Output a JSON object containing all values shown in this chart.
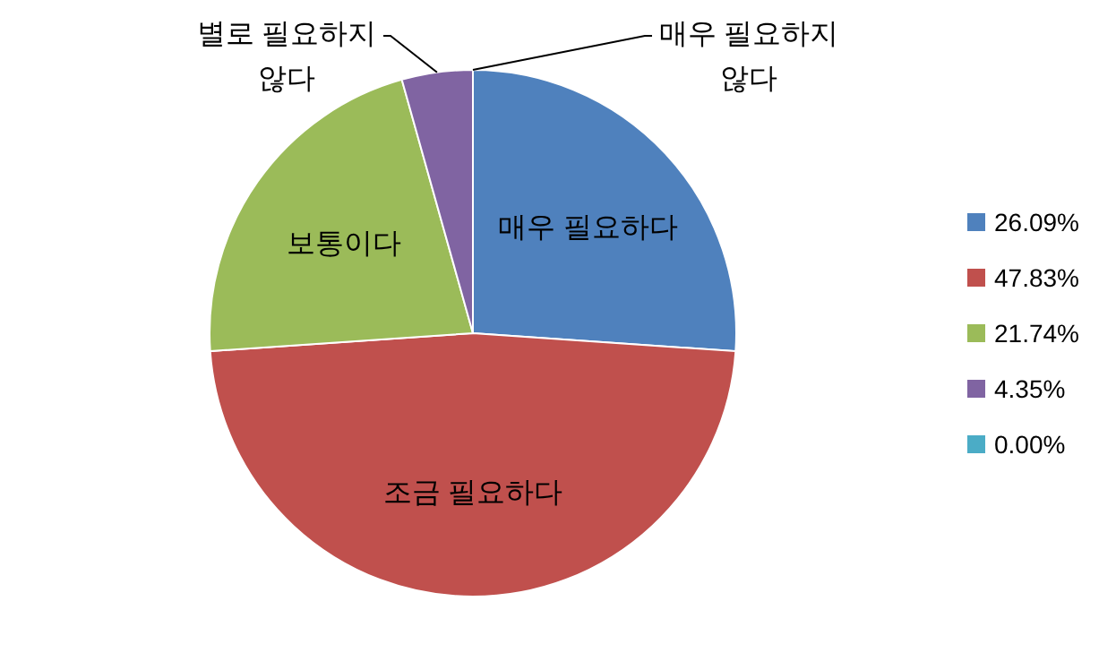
{
  "chart_data": {
    "type": "pie",
    "categories": [
      "26.09%",
      "47.83%",
      "21.74%",
      "4.35%",
      "0.00%"
    ],
    "values": [
      26.09,
      47.83,
      21.74,
      4.35,
      0.0
    ],
    "value_labels": [
      "매우 필요하다",
      "조금 필요하다",
      "보통이다",
      "별로 필요하지 않다",
      "매우 필요하지 않다"
    ],
    "colors": [
      "#4f81bd",
      "#c0504d",
      "#9bbb59",
      "#8064a2",
      "#4bacc6"
    ],
    "legend": "right"
  }
}
